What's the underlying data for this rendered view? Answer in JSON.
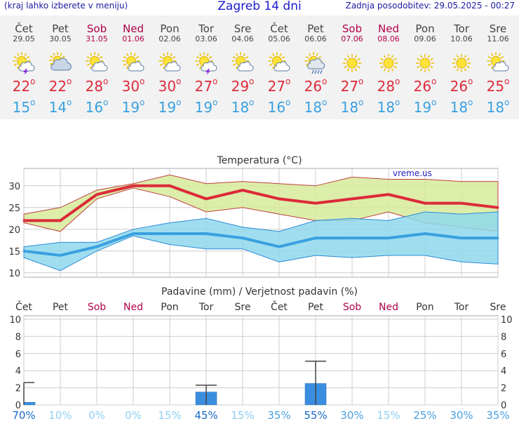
{
  "header": {
    "note": "(kraj lahko izberete v meniju)",
    "title": "Zagreb 14 dni",
    "updated": "Zadnja posodobitev: 29.05.2025 - 00:27"
  },
  "days": [
    {
      "name": "Čet",
      "date": "29.05",
      "weekend": false,
      "icon": "sun-cloud-thunder-icon",
      "max": "22",
      "min": "15"
    },
    {
      "name": "Pet",
      "date": "30.05",
      "weekend": false,
      "icon": "sun-cloudy-icon",
      "max": "22",
      "min": "14"
    },
    {
      "name": "Sob",
      "date": "31.05",
      "weekend": true,
      "icon": "sun-cloud-icon",
      "max": "28",
      "min": "16"
    },
    {
      "name": "Ned",
      "date": "01.06",
      "weekend": true,
      "icon": "sun-cloud-icon",
      "max": "30",
      "min": "19"
    },
    {
      "name": "Pon",
      "date": "02.06",
      "weekend": false,
      "icon": "sun-cloud-icon",
      "max": "30",
      "min": "19"
    },
    {
      "name": "Tor",
      "date": "03.06",
      "weekend": false,
      "icon": "sun-cloud-thunder-icon",
      "max": "27",
      "min": "19"
    },
    {
      "name": "Sre",
      "date": "04.06",
      "weekend": false,
      "icon": "sun-cloud-icon",
      "max": "29",
      "min": "18"
    },
    {
      "name": "Čet",
      "date": "05.06",
      "weekend": false,
      "icon": "sun-cloud-icon",
      "max": "27",
      "min": "16"
    },
    {
      "name": "Pet",
      "date": "06.06",
      "weekend": false,
      "icon": "sun-cloud-rain-icon",
      "max": "26",
      "min": "18"
    },
    {
      "name": "Sob",
      "date": "07.06",
      "weekend": true,
      "icon": "sun-icon",
      "max": "27",
      "min": "18"
    },
    {
      "name": "Ned",
      "date": "08.06",
      "weekend": true,
      "icon": "sun-icon",
      "max": "28",
      "min": "18"
    },
    {
      "name": "Pon",
      "date": "09.06",
      "weekend": false,
      "icon": "sun-icon",
      "max": "26",
      "min": "19"
    },
    {
      "name": "Tor",
      "date": "10.06",
      "weekend": false,
      "icon": "sun-icon",
      "max": "26",
      "min": "18"
    },
    {
      "name": "Sre",
      "date": "11.06",
      "weekend": false,
      "icon": "sun-cloud-icon",
      "max": "25",
      "min": "18"
    }
  ],
  "colors": {
    "max": "#dd2a3a",
    "min": "#3aa0e0",
    "weekend": "#b0004a",
    "maxBand": "#d6eb9a",
    "minBand": "#8fd8ec",
    "rainBar": "#3a8ee0"
  },
  "chart_data": [
    {
      "type": "line",
      "title": "Temperatura (°C)",
      "watermark": "vreme.us",
      "ylim": [
        9,
        34
      ],
      "yticks": [
        10,
        15,
        20,
        25,
        30
      ],
      "x": [
        "Čet",
        "Pet",
        "Sob",
        "Ned",
        "Pon",
        "Tor",
        "Sre",
        "Čet",
        "Pet",
        "Sob",
        "Ned",
        "Pon",
        "Tor",
        "Sre"
      ],
      "series": [
        {
          "values": [
            22,
            22,
            28,
            30,
            30,
            27,
            29,
            27,
            26,
            27,
            28,
            26,
            26,
            25
          ]
        },
        {
          "values": [
            15,
            14,
            16,
            19,
            19,
            19,
            18,
            16,
            18,
            18,
            18,
            19,
            18,
            18
          ]
        }
      ],
      "max_band": {
        "upper": [
          23.5,
          25,
          29,
          30.5,
          32.5,
          30.5,
          31,
          30.5,
          30,
          32,
          31.5,
          31.5,
          31,
          31
        ],
        "lower": [
          21.5,
          19.5,
          27,
          29.5,
          27.5,
          24,
          25,
          23.5,
          22,
          22,
          24,
          21.5,
          20.5,
          19.5
        ]
      },
      "min_band": {
        "upper": [
          16,
          17,
          17,
          20,
          21.5,
          22.5,
          20.5,
          19.5,
          22,
          22.5,
          22,
          24,
          23.5,
          24
        ],
        "lower": [
          13.5,
          10.5,
          15,
          18.5,
          16.5,
          15.5,
          15.5,
          12.5,
          14,
          13.5,
          14,
          14,
          12.5,
          12
        ]
      },
      "grid": true
    },
    {
      "type": "bar",
      "title": "Padavine (mm) / Verjetnost padavin (%)",
      "ylim": [
        0,
        10
      ],
      "yticks": [
        0,
        2,
        4,
        6,
        8,
        10
      ],
      "categories": [
        "Čet",
        "Pet",
        "Sob",
        "Ned",
        "Pon",
        "Tor",
        "Sre",
        "Čet",
        "Pet",
        "Sob",
        "Ned",
        "Pon",
        "Tor",
        "Sre"
      ],
      "values": [
        0.3,
        0,
        0,
        0,
        0,
        1.5,
        0,
        0,
        2.5,
        0,
        0,
        0,
        0,
        0
      ],
      "error_high": [
        2.6,
        null,
        null,
        null,
        null,
        2.3,
        null,
        null,
        5.1,
        null,
        null,
        null,
        null,
        null
      ],
      "probability": [
        "70%",
        "10%",
        "0%",
        "0%",
        "15%",
        "45%",
        "15%",
        "35%",
        "55%",
        "30%",
        "15%",
        "25%",
        "30%",
        "35%"
      ],
      "grid": true
    }
  ]
}
